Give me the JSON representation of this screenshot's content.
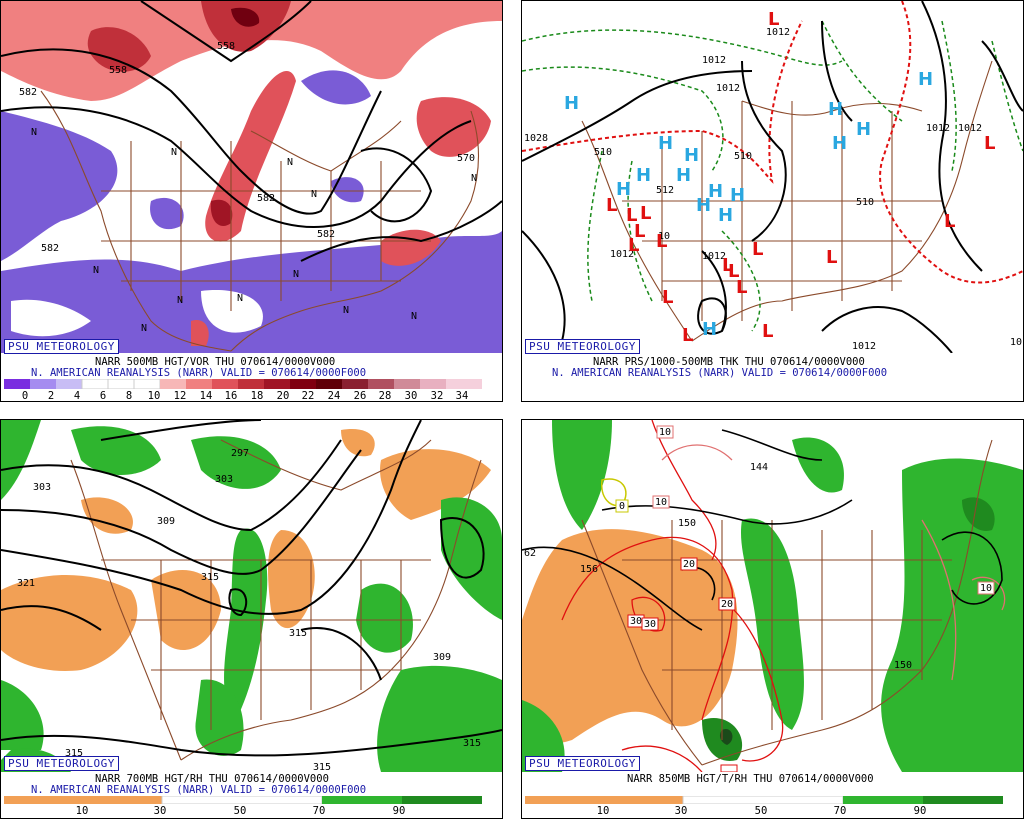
{
  "branding": "PSU METEOROLOGY",
  "panels": {
    "tl": {
      "line1": "NARR 500MB HGT/VOR THU 070614/0000V000",
      "line2": "N. AMERICAN REANALYSIS (NARR) VALID = 070614/0000F000",
      "scale_ticks": [
        "0",
        "2",
        "4",
        "6",
        "8",
        "10",
        "12",
        "14",
        "16",
        "18",
        "20",
        "22",
        "24",
        "26",
        "28",
        "30",
        "32",
        "34"
      ],
      "contour_labels": [
        "582",
        "558",
        "558",
        "570",
        "582",
        "582",
        "582"
      ],
      "marker_labels": [
        "N",
        "N",
        "N",
        "N",
        "N",
        "N",
        "N",
        "N",
        "N",
        "N",
        "N",
        "N"
      ]
    },
    "tr": {
      "line1": "NARR PRS/1000-500MB THK THU 070614/0000V000",
      "line2": "N. AMERICAN REANALYSIS (NARR) VALID = 070614/0000F000",
      "contour_labels": [
        "1012",
        "1012",
        "1012",
        "1012",
        "1012",
        "1012",
        "1028",
        "510",
        "510",
        "510",
        "512",
        "10",
        "1012",
        "1012",
        "10"
      ],
      "highs": [
        "H",
        "H",
        "H",
        "H",
        "H",
        "H",
        "H",
        "H",
        "H",
        "H",
        "H",
        "H",
        "H",
        "H",
        "H"
      ],
      "lows": [
        "L",
        "L",
        "L",
        "L",
        "L",
        "L",
        "L",
        "L",
        "L",
        "L",
        "L",
        "L",
        "L",
        "L",
        "L",
        "L",
        "L"
      ]
    },
    "bl": {
      "line1": "NARR 700MB HGT/RH THU 070614/0000V000",
      "line2": "N. AMERICAN REANALYSIS (NARR) VALID = 070614/0000F000",
      "scale_ticks": [
        "10",
        "30",
        "50",
        "70",
        "90"
      ],
      "contour_labels": [
        "303",
        "297",
        "303",
        "309",
        "321",
        "315",
        "315",
        "309",
        "315",
        "315",
        "315"
      ]
    },
    "br": {
      "line1": "NARR 850MB HGT/T/RH THU 070614/0000V000",
      "scale_ticks": [
        "10",
        "30",
        "50",
        "70",
        "90"
      ],
      "contour_labels": [
        "62",
        "156",
        "150",
        "144",
        "150"
      ],
      "temp_labels": [
        "10",
        "10",
        "0",
        "20",
        "20",
        "30",
        "30",
        "20",
        "10"
      ]
    }
  },
  "colors": {
    "vort_purple": "#7a5cd6",
    "vort_red": "#e0525a",
    "rh_orange": "#f2a055",
    "rh_green": "#2fb52f",
    "borders": "#8b4a2b",
    "high": "#2aa7e0",
    "low": "#e01010"
  }
}
